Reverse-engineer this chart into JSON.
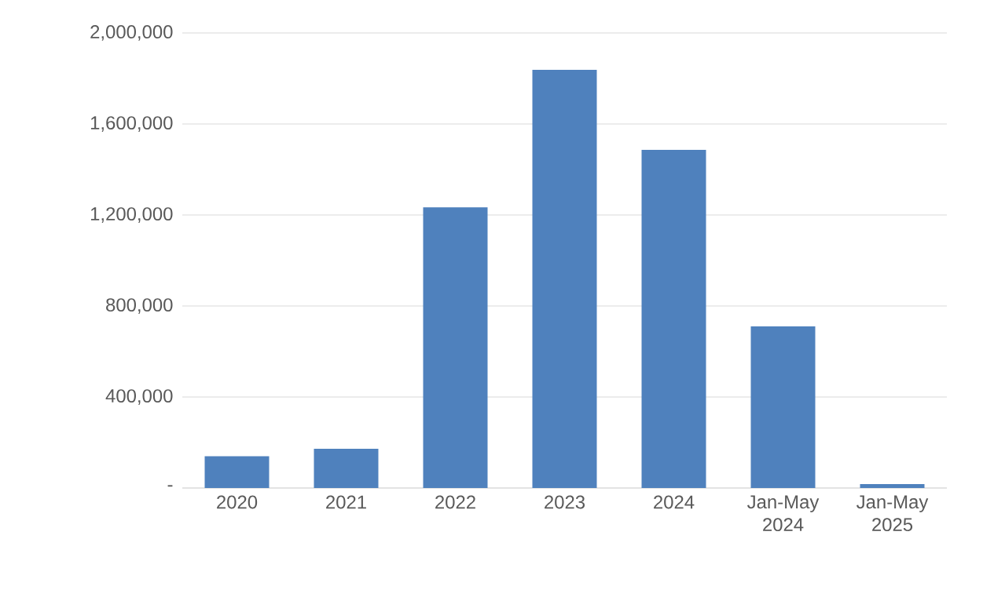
{
  "chart_data": {
    "type": "bar",
    "categories": [
      "2020",
      "2021",
      "2022",
      "2023",
      "2024",
      "Jan-May 2024",
      "Jan-May 2025"
    ],
    "values": [
      140000,
      172000,
      1234000,
      1838000,
      1486000,
      710000,
      17000
    ],
    "color": "#4f81bd",
    "ylim": [
      0,
      2000000
    ],
    "yticks": [
      {
        "value": 0,
        "label": "-"
      },
      {
        "value": 400000,
        "label": "400,000"
      },
      {
        "value": 800000,
        "label": "800,000"
      },
      {
        "value": 1200000,
        "label": "1,200,000"
      },
      {
        "value": 1600000,
        "label": "1,600,000"
      },
      {
        "value": 2000000,
        "label": "2,000,000"
      }
    ],
    "grid": "y"
  }
}
